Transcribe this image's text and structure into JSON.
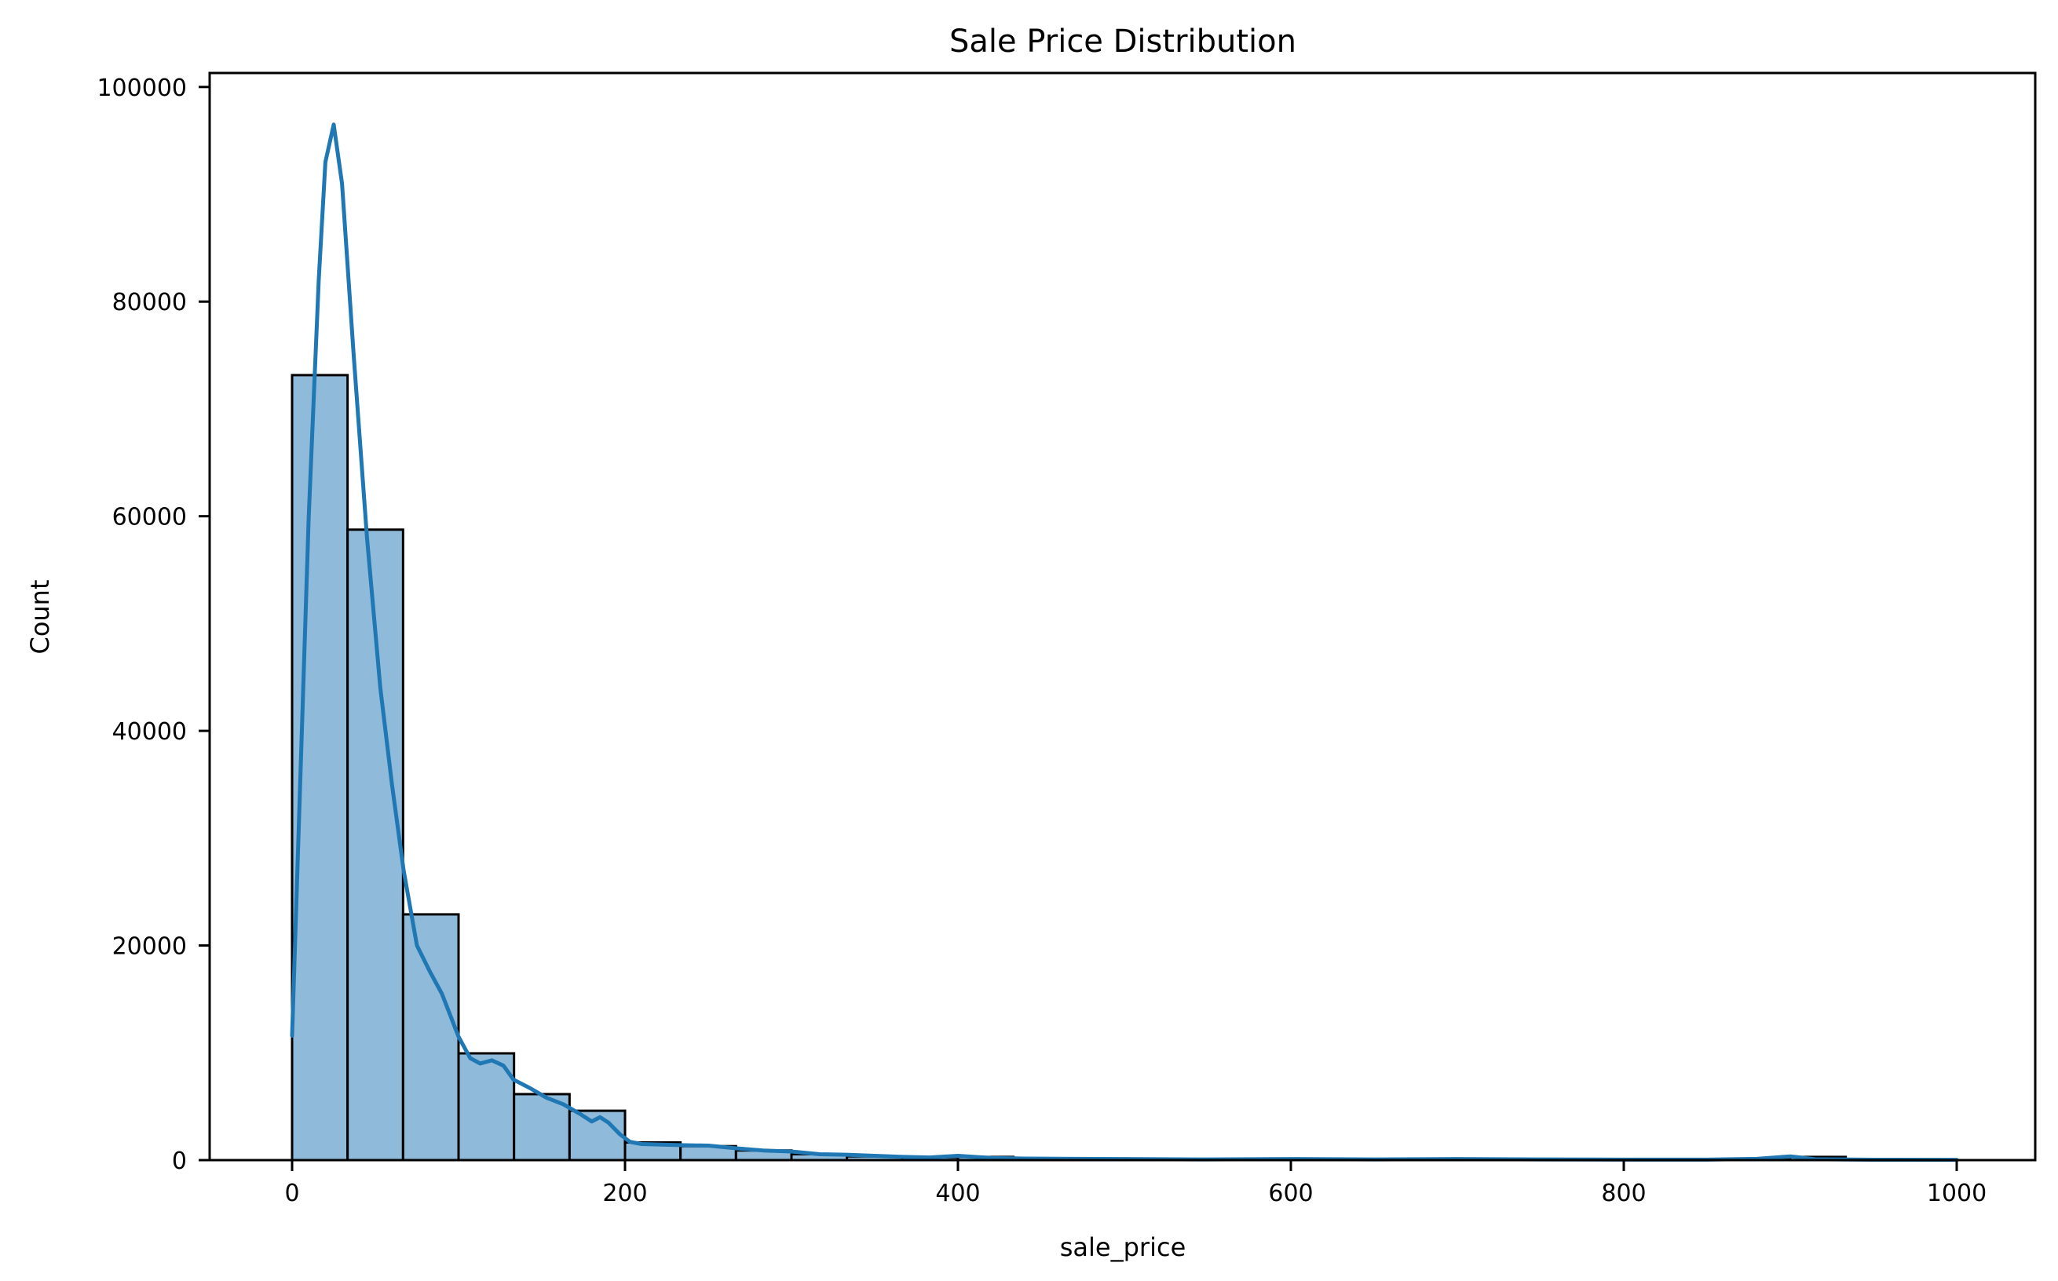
{
  "chart_data": {
    "type": "bar",
    "subtype": "histogram_with_kde",
    "title": "Sale Price Distribution",
    "xlabel": "sale_price",
    "ylabel": "Count",
    "xlim": [
      -50,
      1030
    ],
    "ylim": [
      0,
      101500
    ],
    "xticks": [
      0,
      200,
      400,
      600,
      800,
      1000
    ],
    "yticks": [
      0,
      20000,
      40000,
      60000,
      80000,
      100000
    ],
    "grid": false,
    "legend": null,
    "bin_width": 33.33,
    "bin_edges": [
      0,
      33.33,
      66.67,
      100,
      133.33,
      166.67,
      200,
      233.33,
      266.67,
      300,
      333.33,
      366.67,
      400,
      433.33,
      466.67,
      500,
      533.33,
      566.67,
      600,
      633.33,
      666.67,
      700,
      733.33,
      766.67,
      800,
      833.33,
      866.67,
      900,
      933.33,
      966.67,
      1000
    ],
    "counts": [
      73150,
      58750,
      22900,
      9950,
      6150,
      4600,
      1650,
      1300,
      900,
      550,
      350,
      250,
      300,
      150,
      100,
      100,
      60,
      50,
      80,
      50,
      40,
      80,
      40,
      50,
      60,
      40,
      40,
      300,
      40,
      60
    ],
    "kde": {
      "x": [
        0,
        10,
        16,
        20,
        25,
        30,
        37,
        45,
        53,
        60,
        67,
        75,
        83,
        90,
        100,
        107,
        113,
        120,
        127,
        133,
        143,
        153,
        163,
        173,
        180,
        185,
        190,
        197,
        203,
        210,
        220,
        233,
        250,
        267,
        283,
        300,
        317,
        333,
        350,
        367,
        383,
        400,
        420,
        440,
        470,
        500,
        550,
        600,
        650,
        700,
        750,
        800,
        850,
        880,
        900,
        915,
        950,
        1000
      ],
      "y": [
        11600,
        60000,
        82000,
        93000,
        96500,
        91000,
        75000,
        58000,
        44000,
        35000,
        27000,
        20000,
        17500,
        15500,
        11500,
        9500,
        9000,
        9300,
        8800,
        7500,
        6700,
        5800,
        5200,
        4300,
        3600,
        4000,
        3500,
        2400,
        1700,
        1500,
        1450,
        1400,
        1350,
        1100,
        900,
        800,
        550,
        500,
        400,
        300,
        250,
        400,
        200,
        150,
        120,
        100,
        60,
        100,
        60,
        100,
        60,
        50,
        50,
        120,
        350,
        80,
        40,
        30
      ]
    },
    "colors": {
      "bar_fill": "#8fbad9",
      "bar_edge": "#000000",
      "kde_line": "#1f77b4"
    }
  }
}
